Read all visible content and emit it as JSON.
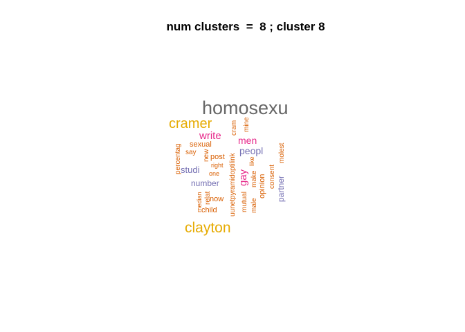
{
  "title": "num clusters  =  8 ; cluster 8",
  "colors": {
    "gray": "#666666",
    "gold": "#e6ab02",
    "orange": "#d95f02",
    "magenta": "#e7298a",
    "purple": "#7570b3"
  },
  "words": [
    {
      "text": "homosexu",
      "color": "gray"
    },
    {
      "text": "cramer",
      "color": "gold"
    },
    {
      "text": "clayton",
      "color": "gold"
    },
    {
      "text": "write",
      "color": "magenta"
    },
    {
      "text": "men",
      "color": "magenta"
    },
    {
      "text": "gay",
      "color": "magenta"
    },
    {
      "text": "peopl",
      "color": "purple"
    },
    {
      "text": "studi",
      "color": "purple"
    },
    {
      "text": "number",
      "color": "purple"
    },
    {
      "text": "partner",
      "color": "purple"
    },
    {
      "text": "sexual",
      "color": "orange"
    },
    {
      "text": "post",
      "color": "orange"
    },
    {
      "text": "say",
      "color": "orange"
    },
    {
      "text": "new",
      "color": "orange"
    },
    {
      "text": "right",
      "color": "orange"
    },
    {
      "text": "one",
      "color": "orange"
    },
    {
      "text": "percentag",
      "color": "orange"
    },
    {
      "text": "now",
      "color": "orange"
    },
    {
      "text": "child",
      "color": "orange"
    },
    {
      "text": "median",
      "color": "orange"
    },
    {
      "text": "relat",
      "color": "orange"
    },
    {
      "text": "cram",
      "color": "orange"
    },
    {
      "text": "mine",
      "color": "orange"
    },
    {
      "text": "uunetpyramidoptilink",
      "color": "orange"
    },
    {
      "text": "mutual",
      "color": "orange"
    },
    {
      "text": "male",
      "color": "orange"
    },
    {
      "text": "make",
      "color": "orange"
    },
    {
      "text": "like",
      "color": "orange"
    },
    {
      "text": "opinion",
      "color": "orange"
    },
    {
      "text": "consent",
      "color": "orange"
    },
    {
      "text": "molest",
      "color": "orange"
    }
  ]
}
